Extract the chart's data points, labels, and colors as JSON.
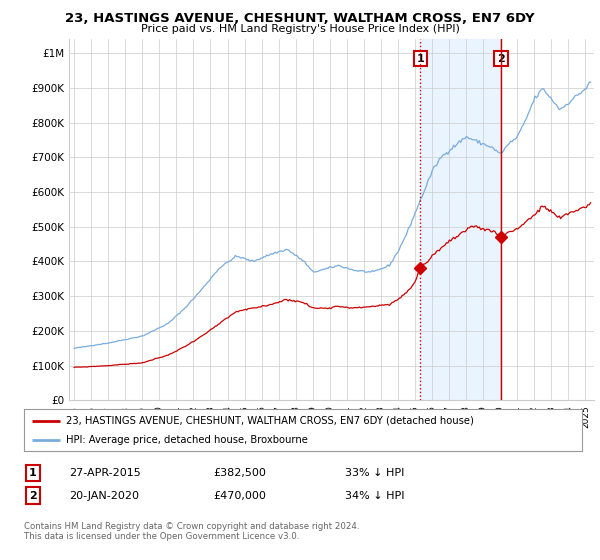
{
  "title": "23, HASTINGS AVENUE, CHESHUNT, WALTHAM CROSS, EN7 6DY",
  "subtitle": "Price paid vs. HM Land Registry's House Price Index (HPI)",
  "ylabel_ticks": [
    "£0",
    "£100K",
    "£200K",
    "£300K",
    "£400K",
    "£500K",
    "£600K",
    "£700K",
    "£800K",
    "£900K",
    "£1M"
  ],
  "ytick_values": [
    0,
    100000,
    200000,
    300000,
    400000,
    500000,
    600000,
    700000,
    800000,
    900000,
    1000000
  ],
  "ylim": [
    0,
    1040000
  ],
  "xlim_start": 1994.7,
  "xlim_end": 2025.5,
  "hpi_color": "#7aacde",
  "price_color": "#cc0000",
  "marker1_date": 2015.32,
  "marker1_price": 382500,
  "marker2_date": 2020.05,
  "marker2_price": 470000,
  "annotation_box_color": "#cc0000",
  "vline1_color": "#cc0000",
  "vline1_style": ":",
  "vline2_color": "#cc0000",
  "vline2_style": "-",
  "shade_color": "#ddeeff",
  "shade_alpha": 0.6,
  "legend_line1": "23, HASTINGS AVENUE, CHESHUNT, WALTHAM CROSS, EN7 6DY (detached house)",
  "legend_line2": "HPI: Average price, detached house, Broxbourne",
  "table_row1_num": "1",
  "table_row1_date": "27-APR-2015",
  "table_row1_price": "£382,500",
  "table_row1_hpi": "33% ↓ HPI",
  "table_row2_num": "2",
  "table_row2_date": "20-JAN-2020",
  "table_row2_price": "£470,000",
  "table_row2_hpi": "34% ↓ HPI",
  "footer": "Contains HM Land Registry data © Crown copyright and database right 2024.\nThis data is licensed under the Open Government Licence v3.0.",
  "bg_color": "#ffffff",
  "grid_color": "#cccccc"
}
